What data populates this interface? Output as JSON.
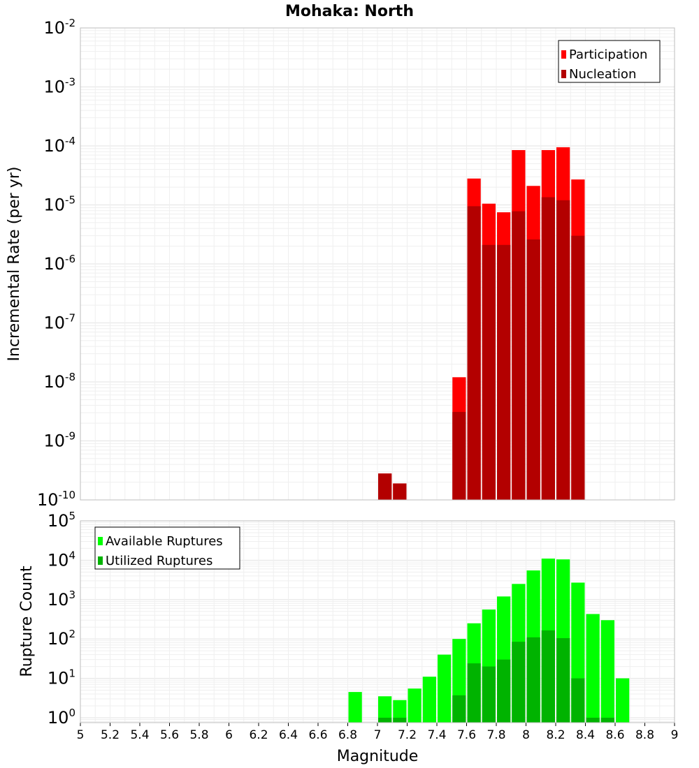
{
  "chart_data": [
    {
      "type": "bar",
      "title": "Mohaka: North",
      "xlabel": "",
      "ylabel": "Incremental Rate (per yr)",
      "yscale": "log",
      "ylim": [
        1e-10,
        0.01
      ],
      "xlim": [
        5,
        9
      ],
      "bin_width": 0.1,
      "grid": true,
      "legend": "top-right",
      "yticks": [
        {
          "base": "10",
          "exp": "-2",
          "value": 0.01
        },
        {
          "base": "10",
          "exp": "-3",
          "value": 0.001
        },
        {
          "base": "10",
          "exp": "-4",
          "value": 0.0001
        },
        {
          "base": "10",
          "exp": "-5",
          "value": 1e-05
        },
        {
          "base": "10",
          "exp": "-6",
          "value": 1e-06
        },
        {
          "base": "10",
          "exp": "-7",
          "value": 1e-07
        },
        {
          "base": "10",
          "exp": "-8",
          "value": 1e-08
        },
        {
          "base": "10",
          "exp": "-9",
          "value": 1e-09
        },
        {
          "base": "10",
          "exp": "-10",
          "value": 1e-10
        }
      ],
      "series": [
        {
          "name": "Participation",
          "color": "#ff0000",
          "x": [
            7.05,
            7.15,
            7.55,
            7.65,
            7.75,
            7.85,
            7.95,
            8.05,
            8.15,
            8.25,
            8.35
          ],
          "values": [
            2.8e-10,
            1.9e-10,
            1.2e-08,
            2.8e-05,
            1.05e-05,
            7.5e-06,
            8.5e-05,
            2.1e-05,
            8.5e-05,
            9.5e-05,
            2.7e-05
          ]
        },
        {
          "name": "Nucleation",
          "color": "#b30000",
          "x": [
            7.05,
            7.15,
            7.55,
            7.65,
            7.75,
            7.85,
            7.95,
            8.05,
            8.15,
            8.25,
            8.35
          ],
          "values": [
            2.8e-10,
            1.9e-10,
            3.1e-09,
            9.5e-06,
            2.1e-06,
            2.1e-06,
            7.8e-06,
            2.6e-06,
            1.35e-05,
            1.2e-05,
            3e-06
          ]
        }
      ]
    },
    {
      "type": "bar",
      "title": "",
      "xlabel": "Magnitude",
      "ylabel": "Rupture Count",
      "yscale": "log",
      "ylim": [
        0.75,
        100000.0
      ],
      "xlim": [
        5,
        9
      ],
      "bin_width": 0.1,
      "grid": true,
      "legend": "top-left",
      "xticks": [
        "5",
        "5.2",
        "5.4",
        "5.6",
        "5.8",
        "6",
        "6.2",
        "6.4",
        "6.6",
        "6.8",
        "7",
        "7.2",
        "7.4",
        "7.6",
        "7.8",
        "8",
        "8.2",
        "8.4",
        "8.6",
        "8.8",
        "9"
      ],
      "yticks": [
        {
          "base": "10",
          "exp": "5",
          "value": 100000.0
        },
        {
          "base": "10",
          "exp": "4",
          "value": 10000.0
        },
        {
          "base": "10",
          "exp": "3",
          "value": 1000.0
        },
        {
          "base": "10",
          "exp": "2",
          "value": 100.0
        },
        {
          "base": "10",
          "exp": "1",
          "value": 10.0
        },
        {
          "base": "10",
          "exp": "0",
          "value": 1
        }
      ],
      "series": [
        {
          "name": "Available Ruptures",
          "color": "#00ff00",
          "x": [
            6.85,
            7.05,
            7.15,
            7.25,
            7.35,
            7.45,
            7.55,
            7.65,
            7.75,
            7.85,
            7.95,
            8.05,
            8.15,
            8.25,
            8.35,
            8.45,
            8.55,
            8.65
          ],
          "values": [
            4.5,
            3.5,
            2.8,
            5.5,
            11,
            40,
            100,
            250,
            560,
            1200,
            2500,
            5500,
            11000,
            10500,
            2700,
            430,
            300,
            10
          ]
        },
        {
          "name": "Utilized Ruptures",
          "color": "#00b300",
          "x": [
            7.05,
            7.15,
            7.55,
            7.65,
            7.75,
            7.85,
            7.95,
            8.05,
            8.15,
            8.25,
            8.35,
            8.45,
            8.55
          ],
          "values": [
            1,
            1,
            3.7,
            24,
            20,
            30,
            85,
            110,
            165,
            105,
            10,
            1,
            1
          ]
        }
      ]
    }
  ]
}
